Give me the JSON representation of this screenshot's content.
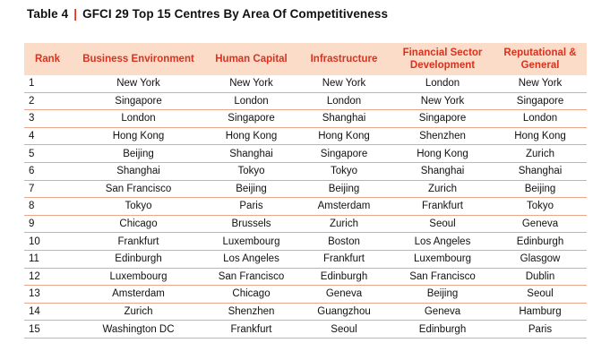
{
  "title": {
    "table_label": "Table 4",
    "separator": "|",
    "text": "GFCI 29  Top 15 Centres By Area Of Competitiveness"
  },
  "columns": [
    "Rank",
    "Business Environment",
    "Human Capital",
    "Infrastructure",
    "Financial Sector Development",
    "Reputational & General"
  ],
  "rows": [
    [
      "1",
      "New York",
      "New York",
      "New York",
      "London",
      "New York"
    ],
    [
      "2",
      "Singapore",
      "London",
      "London",
      "New York",
      "Singapore"
    ],
    [
      "3",
      "London",
      "Singapore",
      "Shanghai",
      "Singapore",
      "London"
    ],
    [
      "4",
      "Hong Kong",
      "Hong Kong",
      "Hong Kong",
      "Shenzhen",
      "Hong Kong"
    ],
    [
      "5",
      "Beijing",
      "Shanghai",
      "Singapore",
      "Hong Kong",
      "Zurich"
    ],
    [
      "6",
      "Shanghai",
      "Tokyo",
      "Tokyo",
      "Shanghai",
      "Shanghai"
    ],
    [
      "7",
      "San Francisco",
      "Beijing",
      "Beijing",
      "Zurich",
      "Beijing"
    ],
    [
      "8",
      "Tokyo",
      "Paris",
      "Amsterdam",
      "Frankfurt",
      "Tokyo"
    ],
    [
      "9",
      "Chicago",
      "Brussels",
      "Zurich",
      "Seoul",
      "Geneva"
    ],
    [
      "10",
      "Frankfurt",
      "Luxembourg",
      "Boston",
      "Los Angeles",
      "Edinburgh"
    ],
    [
      "11",
      "Edinburgh",
      "Los Angeles",
      "Frankfurt",
      "Luxembourg",
      "Glasgow"
    ],
    [
      "12",
      "Luxembourg",
      "San Francisco",
      "Edinburgh",
      "San Francisco",
      "Dublin"
    ],
    [
      "13",
      "Amsterdam",
      "Chicago",
      "Geneva",
      "Beijing",
      "Seoul"
    ],
    [
      "14",
      "Zurich",
      "Shenzhen",
      "Guangzhou",
      "Geneva",
      "Hamburg"
    ],
    [
      "15",
      "Washington DC",
      "Frankfurt",
      "Seoul",
      "Edinburgh",
      "Paris"
    ]
  ],
  "colors": {
    "accent": "#d9321e",
    "header_background": "#fbdcc8",
    "row_rule": "#e8a78e"
  }
}
